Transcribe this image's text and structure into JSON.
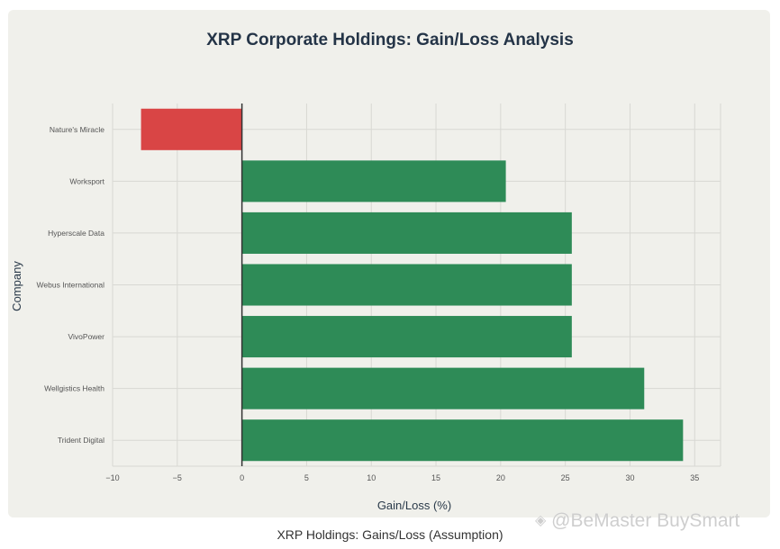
{
  "chart_data": {
    "type": "bar",
    "orientation": "horizontal",
    "title": "XRP Corporate Holdings: Gain/Loss Analysis",
    "xlabel": "Gain/Loss (%)",
    "ylabel": "Company",
    "xlim": [
      -10,
      37
    ],
    "xticks": [
      -10,
      -5,
      0,
      5,
      10,
      15,
      20,
      25,
      30,
      35
    ],
    "categories": [
      "Nature's Miracle",
      "Worksport",
      "Hyperscale Data",
      "Webus International",
      "VivoPower",
      "Wellgistics Health",
      "Trident Digital"
    ],
    "values": [
      -7.8,
      20.4,
      25.5,
      25.5,
      25.5,
      31.1,
      34.1
    ],
    "colors": {
      "negative": "#d94545",
      "positive": "#2e8b57"
    },
    "grid": true,
    "legend": "none"
  },
  "caption": "XRP Holdings: Gains/Loss (Assumption)",
  "watermark": "@BeMaster BuySmart"
}
